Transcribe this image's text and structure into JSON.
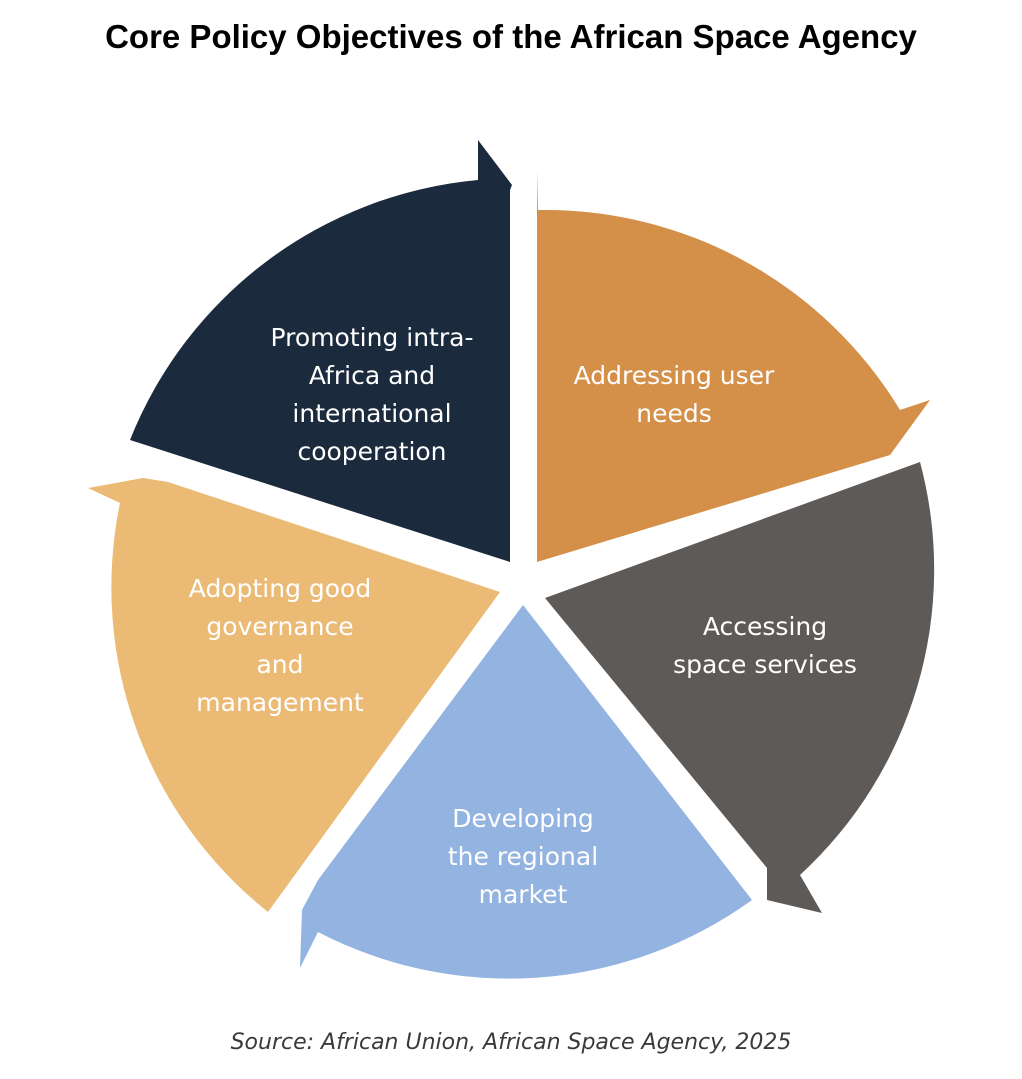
{
  "title": "Core Policy Objectives of the African Space Agency",
  "source": "Source: African Union, African Space Agency, 2025",
  "segments": [
    {
      "id": "addressing-user-needs",
      "lines": [
        "Addressing user",
        "needs"
      ],
      "color": "#D48F48"
    },
    {
      "id": "accessing-space-services",
      "lines": [
        "Accessing",
        "space services"
      ],
      "color": "#5E5A57"
    },
    {
      "id": "developing-regional-market",
      "lines": [
        "Developing",
        "the regional",
        "market"
      ],
      "color": "#93B3E0"
    },
    {
      "id": "adopting-good-governance",
      "lines": [
        "Adopting good",
        "governance",
        "and",
        "management"
      ],
      "color": "#EBBB75"
    },
    {
      "id": "promoting-cooperation",
      "lines": [
        "Promoting intra-",
        "Africa and",
        "international",
        "cooperation"
      ],
      "color": "#1B2A3D"
    }
  ],
  "text_color": "#FFFFFF"
}
